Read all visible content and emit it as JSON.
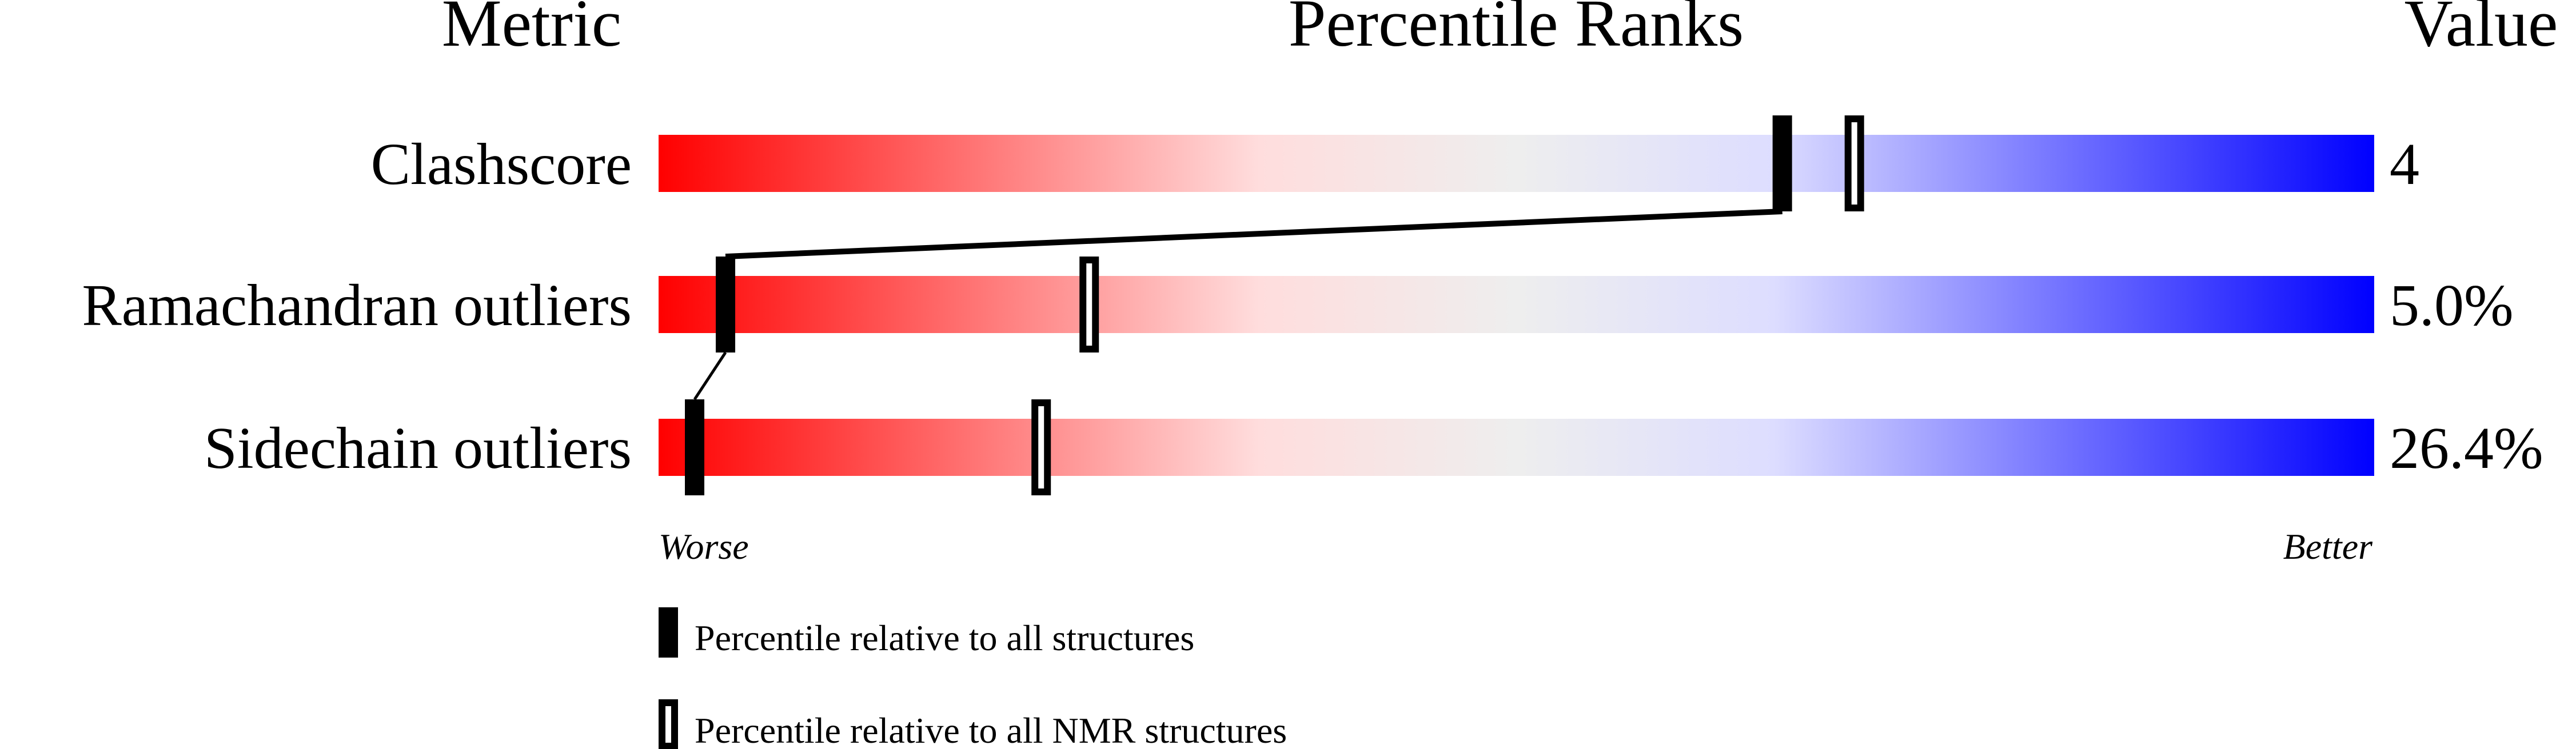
{
  "chart_data": {
    "type": "bar",
    "title": "Percentile Ranks",
    "headers": {
      "metric": "Metric",
      "ranks": "Percentile Ranks",
      "value": "Value"
    },
    "xlim": [
      0,
      100
    ],
    "axis_labels": {
      "left": "Worse",
      "right": "Better"
    },
    "metrics": [
      {
        "name": "Clashscore",
        "value": "4",
        "percentile_all": 65.5,
        "percentile_nmr": 69.7
      },
      {
        "name": "Ramachandran outliers",
        "value": "5.0%",
        "percentile_all": 3.9,
        "percentile_nmr": 25.1
      },
      {
        "name": "Sidechain outliers",
        "value": "26.4%",
        "percentile_all": 2.1,
        "percentile_nmr": 22.3
      }
    ],
    "legend": {
      "all": "Percentile relative to all structures",
      "nmr": "Percentile relative to all NMR structures"
    },
    "colors": {
      "worse": "#ff0000",
      "neutral": "#eeeeee",
      "better": "#0000ff"
    }
  }
}
